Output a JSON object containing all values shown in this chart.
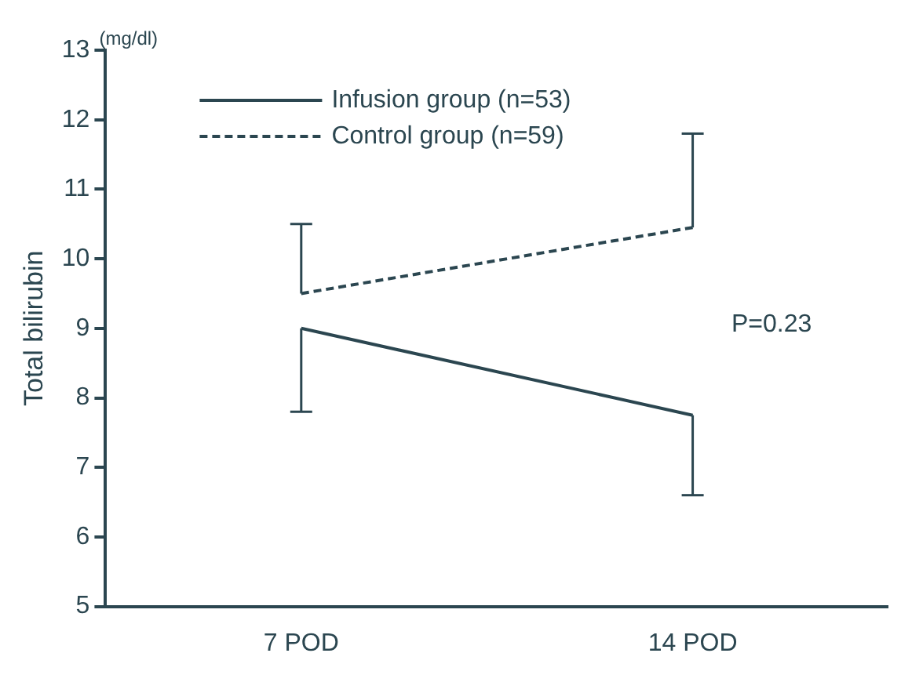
{
  "chart_data": {
    "type": "line",
    "ylabel": "Total bilirubin",
    "categories": [
      "7 POD",
      "14 POD"
    ],
    "series": [
      {
        "name": "Infusion group (n=53)",
        "color": "#2b4650",
        "line_style": "solid",
        "values": [
          9.0,
          7.75
        ],
        "errors": [
          [
            7.8,
            9.0
          ],
          [
            6.6,
            7.75
          ]
        ]
      },
      {
        "name": "Control group (n=59)",
        "color": "#2b4650",
        "line_style": "dashed",
        "values": [
          9.5,
          10.45
        ],
        "errors": [
          [
            9.5,
            10.5
          ],
          [
            10.45,
            11.8
          ]
        ]
      }
    ],
    "ylim": [
      5,
      13
    ],
    "yticks": [
      5,
      6,
      7,
      8,
      9,
      10,
      11,
      12,
      13
    ],
    "grid": false,
    "legend": "top left",
    "marker": "none",
    "annotations": [
      "(mg/dl)",
      "P=0.23"
    ]
  }
}
